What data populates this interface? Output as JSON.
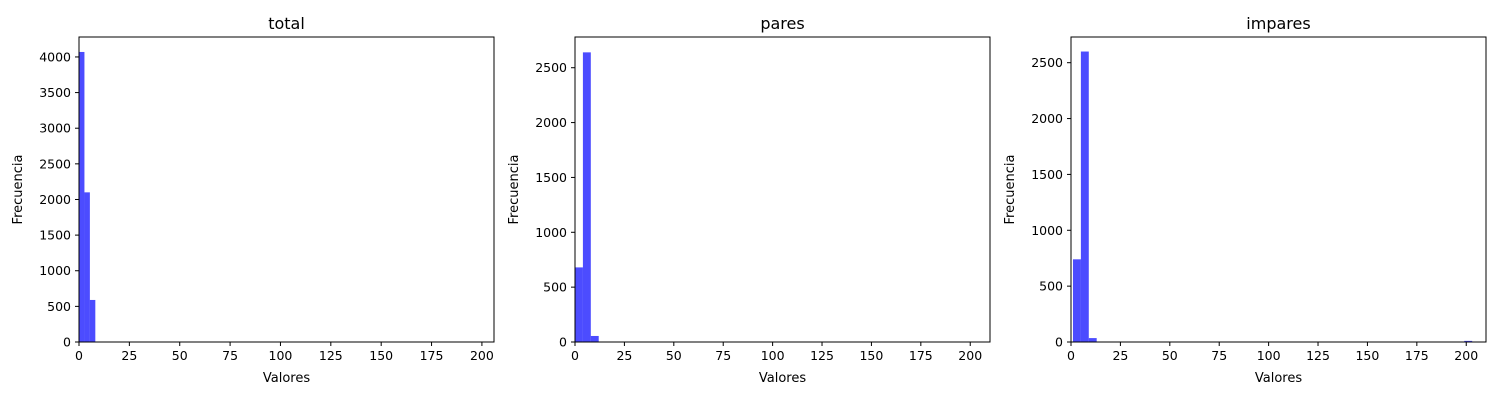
{
  "chart_data": [
    {
      "type": "bar",
      "histogram": true,
      "title": "total",
      "xlabel": "Valores",
      "ylabel": "Frecuencia",
      "xlim": [
        0,
        206
      ],
      "ylim": [
        0,
        4280
      ],
      "xticks": [
        0,
        25,
        50,
        75,
        100,
        125,
        150,
        175,
        200
      ],
      "yticks": [
        0,
        500,
        1000,
        1500,
        2000,
        2500,
        3000,
        3500,
        4000
      ],
      "bar_color": "#0000ff",
      "bar_opacity": 0.7,
      "bins": [
        {
          "x0": 0,
          "x1": 2.7,
          "value": 4070
        },
        {
          "x0": 2.7,
          "x1": 5.4,
          "value": 2100
        },
        {
          "x0": 5.4,
          "x1": 8.1,
          "value": 590
        }
      ]
    },
    {
      "type": "bar",
      "histogram": true,
      "title": "pares",
      "xlabel": "Valores",
      "ylabel": "Frecuencia",
      "xlim": [
        0,
        210
      ],
      "ylim": [
        0,
        2780
      ],
      "xticks": [
        0,
        25,
        50,
        75,
        100,
        125,
        150,
        175,
        200
      ],
      "yticks": [
        0,
        500,
        1000,
        1500,
        2000,
        2500
      ],
      "bar_color": "#0000ff",
      "bar_opacity": 0.7,
      "bins": [
        {
          "x0": 0,
          "x1": 4,
          "value": 680
        },
        {
          "x0": 4,
          "x1": 8,
          "value": 2640
        },
        {
          "x0": 8,
          "x1": 12,
          "value": 55
        }
      ]
    },
    {
      "type": "bar",
      "histogram": true,
      "title": "impares",
      "xlabel": "Valores",
      "ylabel": "Frecuencia",
      "xlim": [
        0,
        210
      ],
      "ylim": [
        0,
        2730
      ],
      "xticks": [
        0,
        25,
        50,
        75,
        100,
        125,
        150,
        175,
        200
      ],
      "yticks": [
        0,
        500,
        1000,
        1500,
        2000,
        2500
      ],
      "bar_color": "#0000ff",
      "bar_opacity": 0.7,
      "bins": [
        {
          "x0": 1,
          "x1": 5,
          "value": 740
        },
        {
          "x0": 5,
          "x1": 9,
          "value": 2600
        },
        {
          "x0": 9,
          "x1": 13,
          "value": 35
        },
        {
          "x0": 199,
          "x1": 203,
          "value": 10
        }
      ]
    }
  ]
}
